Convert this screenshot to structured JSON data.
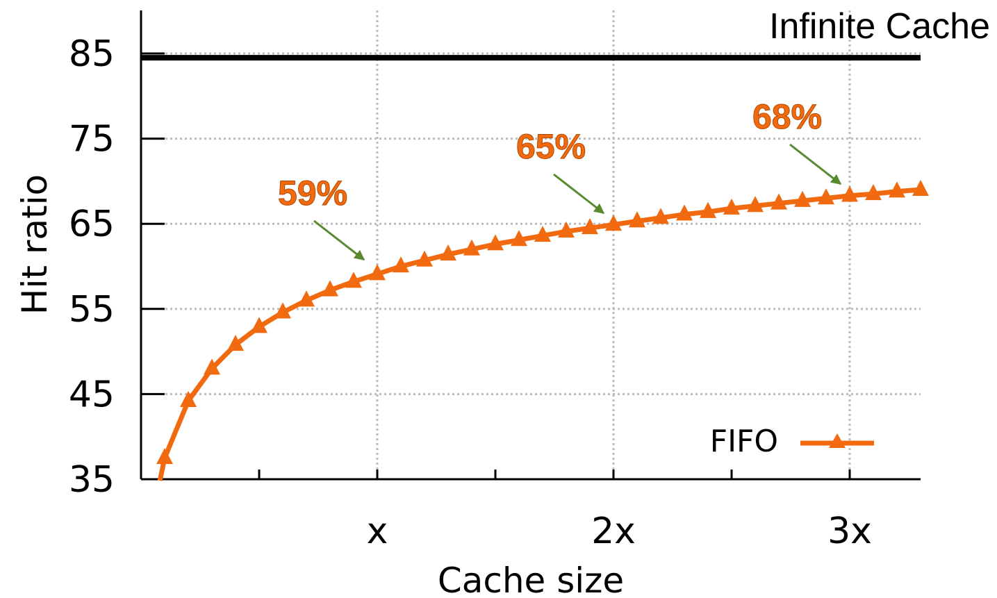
{
  "chart_data": {
    "type": "line",
    "xlabel": "Cache size",
    "ylabel": "Hit ratio",
    "x_tick_labels": [
      "x",
      "2x",
      "3x"
    ],
    "x_tick_values": [
      1,
      2,
      3
    ],
    "xlim": [
      0,
      3.3
    ],
    "y_ticks": [
      35,
      45,
      55,
      65,
      75,
      85
    ],
    "ylim": [
      35,
      85
    ],
    "grid": true,
    "legend_position": "bottom-right",
    "colors": {
      "series": "#f26a10",
      "reference": "#000000",
      "arrow": "#5a8a30",
      "grid": "#bbbbbb"
    },
    "series": [
      {
        "name": "FIFO",
        "marker": "triangle",
        "x": [
          0.1,
          0.2,
          0.3,
          0.4,
          0.5,
          0.6,
          0.7,
          0.8,
          0.9,
          1.0,
          1.1,
          1.2,
          1.3,
          1.4,
          1.5,
          1.6,
          1.7,
          1.8,
          1.9,
          2.0,
          2.1,
          2.2,
          2.3,
          2.4,
          2.5,
          2.6,
          2.7,
          2.8,
          2.9,
          3.0,
          3.1,
          3.2,
          3.3
        ],
        "values": [
          37.5,
          44.2,
          48.0,
          50.8,
          52.9,
          54.6,
          56.0,
          57.2,
          58.2,
          59.1,
          60.0,
          60.7,
          61.4,
          62.0,
          62.6,
          63.1,
          63.6,
          64.1,
          64.5,
          64.9,
          65.3,
          65.7,
          66.1,
          66.4,
          66.8,
          67.1,
          67.4,
          67.7,
          68.0,
          68.3,
          68.5,
          68.8,
          69.0
        ]
      }
    ],
    "reference_lines": [
      {
        "label": "Infinite Cache",
        "value": 84.5
      }
    ],
    "annotations": [
      {
        "text": "59%",
        "x": 1.0,
        "y": 59.1
      },
      {
        "text": "65%",
        "x": 2.0,
        "y": 64.9
      },
      {
        "text": "68%",
        "x": 3.0,
        "y": 68.3
      }
    ]
  }
}
